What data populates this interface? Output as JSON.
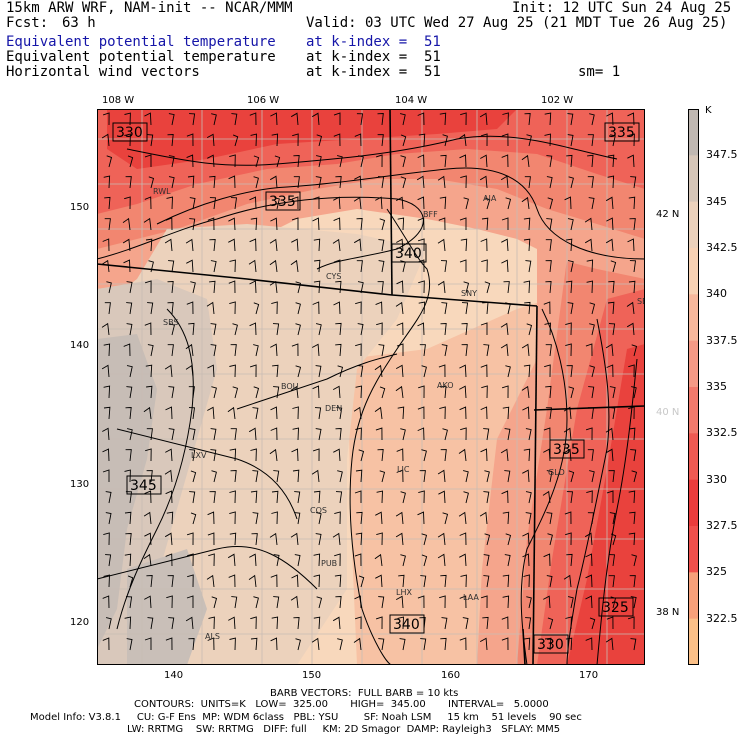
{
  "header": {
    "model_line": "15km ARW WRF, NAM-init -- NCAR/MMM",
    "init_line": "Init: 12 UTC Sun 24 Aug 25",
    "fcst_label": "Fcst:",
    "fcst_value": "63 h",
    "valid_line": "Valid: 03 UTC Wed 27 Aug 25 (21 MDT Tue 26 Aug 25)",
    "fields": [
      {
        "name": "Equivalent potential temperature",
        "level": "at k-index =  51",
        "color": "#1515a8"
      },
      {
        "name": "Equivalent potential temperature",
        "level": "at k-index =  51",
        "color": "#000000"
      },
      {
        "name": "Horizontal wind vectors",
        "level": "at k-index =  51",
        "color": "#000000"
      }
    ],
    "smoothing": "sm= 1"
  },
  "map": {
    "lon_labels": [
      "108 W",
      "106 W",
      "104 W",
      "102 W"
    ],
    "lat_labels": [
      "42 N",
      "40 N",
      "38 N"
    ],
    "x_ticks": [
      "140",
      "150",
      "160",
      "170"
    ],
    "y_ticks": [
      "150",
      "140",
      "130",
      "120"
    ],
    "cities": [
      "RWL",
      "BFF",
      "AIA",
      "CYS",
      "SNY",
      "SBS",
      "BOU",
      "DEN",
      "AKO",
      "LXV",
      "LIC",
      "GLD",
      "COS",
      "PUB",
      "LHX",
      "LAA",
      "ALS",
      "SBE"
    ],
    "contour_labels": [
      "330",
      "335",
      "335",
      "340",
      "345",
      "335",
      "340",
      "325",
      "330"
    ]
  },
  "colorbar": {
    "unit": "K",
    "labels": [
      "347.5",
      "345",
      "342.5",
      "340",
      "337.5",
      "335",
      "332.5",
      "330",
      "327.5",
      "325",
      "322.5"
    ],
    "colors": [
      "#c0b8b2",
      "#d6c6b8",
      "#ecd2bc",
      "#f8d2b4",
      "#f7b89c",
      "#f59a86",
      "#f27a6c",
      "#ef5a52",
      "#ea3c3c",
      "#f0504c",
      "#f7a07a",
      "#fbc088"
    ]
  },
  "footer": {
    "barb_line": "BARB VECTORS:  FULL BARB = 10 kts",
    "contours_line": "CONTOURS:  UNITS=K   LOW=  325.00       HIGH=  345.00       INTERVAL=   5.0000",
    "model_info_1": "Model Info: V3.8.1     CU: G-F Ens  MP: WDM 6class   PBL: YSU        SF: Noah LSM     15 km    51 levels    90 sec",
    "model_info_2": "LW: RRTMG    SW: RRTMG   DIFF: full     KM: 2D Smagor  DAMP: Rayleigh3   SFLAY: MM5"
  }
}
